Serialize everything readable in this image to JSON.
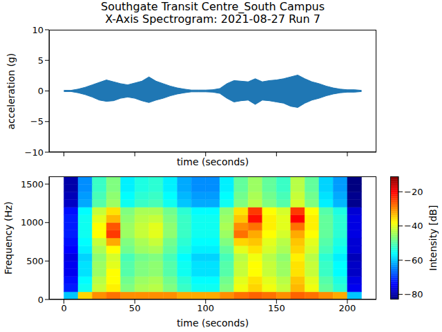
{
  "chart_data": [
    {
      "type": "area",
      "title": "Southgate Transit Centre_South Campus\nX-Axis Spectrogram: 2021-08-27 Run 7",
      "x_label": "time (seconds)",
      "y_label": "acceleration (g)",
      "x": [
        0,
        5,
        10,
        15,
        20,
        25,
        30,
        35,
        40,
        45,
        50,
        55,
        60,
        65,
        70,
        75,
        80,
        85,
        90,
        95,
        100,
        105,
        110,
        115,
        120,
        125,
        130,
        135,
        140,
        145,
        150,
        155,
        160,
        165,
        170,
        175,
        180,
        185,
        190,
        195,
        200,
        205,
        210
      ],
      "values": [
        [
          -0.1,
          0.1
        ],
        [
          -0.1,
          0.1
        ],
        [
          -0.3,
          0.3
        ],
        [
          -0.6,
          0.6
        ],
        [
          -1.0,
          1.0
        ],
        [
          -1.5,
          1.4
        ],
        [
          -1.7,
          1.8
        ],
        [
          -1.6,
          1.5
        ],
        [
          -1.2,
          1.2
        ],
        [
          -1.0,
          1.0
        ],
        [
          -1.2,
          1.3
        ],
        [
          -1.6,
          1.6
        ],
        [
          -1.9,
          2.3
        ],
        [
          -1.5,
          1.6
        ],
        [
          -1.2,
          1.2
        ],
        [
          -0.8,
          0.8
        ],
        [
          -0.5,
          0.5
        ],
        [
          -0.3,
          0.3
        ],
        [
          -0.15,
          0.15
        ],
        [
          -0.15,
          0.15
        ],
        [
          -0.15,
          0.15
        ],
        [
          -0.2,
          0.2
        ],
        [
          -0.4,
          0.4
        ],
        [
          -1.2,
          1.2
        ],
        [
          -1.8,
          1.7
        ],
        [
          -1.6,
          1.6
        ],
        [
          -1.5,
          1.5
        ],
        [
          -2.2,
          2.0
        ],
        [
          -1.5,
          1.5
        ],
        [
          -1.6,
          1.7
        ],
        [
          -1.8,
          1.8
        ],
        [
          -2.0,
          2.0
        ],
        [
          -2.5,
          2.3
        ],
        [
          -2.7,
          2.6
        ],
        [
          -2.0,
          2.0
        ],
        [
          -1.5,
          1.5
        ],
        [
          -1.2,
          1.2
        ],
        [
          -0.8,
          0.8
        ],
        [
          -0.5,
          0.5
        ],
        [
          -0.3,
          0.3
        ],
        [
          -0.2,
          0.2
        ],
        [
          -0.2,
          0.2
        ],
        [
          -0.1,
          0.1
        ]
      ],
      "color": "#1f77b4",
      "xlim": [
        -10.5,
        220.5
      ],
      "xticks": [
        0,
        50,
        100,
        150,
        200
      ],
      "ylim": [
        -10,
        10
      ],
      "yticks": [
        {
          "value": -10,
          "label": "−10"
        },
        {
          "value": -5,
          "label": "−5"
        },
        0,
        5,
        10
      ],
      "tick_labels": "y"
    },
    {
      "type": "heatmap",
      "x_label": "time (seconds)",
      "y_label": "Frequency (Hz)",
      "time_bins": [
        0,
        10,
        20,
        30,
        40,
        50,
        60,
        70,
        80,
        90,
        100,
        110,
        120,
        130,
        140,
        150,
        160,
        170,
        180,
        190,
        200,
        210
      ],
      "freq_bins": [
        0,
        100,
        200,
        300,
        400,
        500,
        600,
        700,
        800,
        900,
        1000,
        1100,
        1200,
        1300,
        1400,
        1500,
        1600
      ],
      "cells": [
        [
          -60,
          -35,
          -30,
          -28,
          -30,
          -30,
          -30,
          -30,
          -32,
          -32,
          -32,
          -30,
          -28,
          -27,
          -28,
          -30,
          -27,
          -28,
          -30,
          -32,
          -60
        ],
        [
          -72,
          -55,
          -42,
          -37,
          -47,
          -44,
          -43,
          -47,
          -52,
          -55,
          -55,
          -47,
          -39,
          -35,
          -39,
          -42,
          -33,
          -39,
          -49,
          -53,
          -75
        ],
        [
          -73,
          -56,
          -43,
          -38,
          -48,
          -45,
          -44,
          -48,
          -53,
          -56,
          -56,
          -48,
          -40,
          -36,
          -40,
          -43,
          -34,
          -40,
          -50,
          -54,
          -76
        ],
        [
          -75,
          -58,
          -45,
          -38,
          -50,
          -47,
          -46,
          -50,
          -55,
          -58,
          -58,
          -50,
          -42,
          -38,
          -42,
          -45,
          -36,
          -42,
          -52,
          -56,
          -78
        ],
        [
          -75,
          -58,
          -45,
          -40,
          -50,
          -47,
          -46,
          -50,
          -55,
          -58,
          -58,
          -50,
          -42,
          -38,
          -42,
          -45,
          -36,
          -42,
          -52,
          -56,
          -78
        ],
        [
          -76,
          -59,
          -46,
          -41,
          -51,
          -48,
          -47,
          -51,
          -56,
          -59,
          -59,
          -51,
          -43,
          -39,
          -43,
          -46,
          -37,
          -43,
          -53,
          -57,
          -79
        ],
        [
          -74,
          -57,
          -44,
          -38,
          -48,
          -45,
          -44,
          -49,
          -54,
          -57,
          -57,
          -49,
          -40,
          -36,
          -41,
          -44,
          -35,
          -41,
          -51,
          -55,
          -77
        ],
        [
          -73,
          -56,
          -42,
          -32,
          -47,
          -44,
          -42,
          -48,
          -53,
          -56,
          -56,
          -47,
          -35,
          -34,
          -40,
          -43,
          -34,
          -40,
          -50,
          -54,
          -77
        ],
        [
          -72,
          -55,
          -38,
          -24,
          -45,
          -42,
          -40,
          -46,
          -52,
          -55,
          -55,
          -45,
          -28,
          -32,
          -38,
          -41,
          -32,
          -38,
          -49,
          -53,
          -76
        ],
        [
          -72,
          -55,
          -38,
          -26,
          -45,
          -42,
          -40,
          -46,
          -52,
          -55,
          -55,
          -44,
          -30,
          -28,
          -37,
          -40,
          -28,
          -37,
          -49,
          -53,
          -76
        ],
        [
          -72,
          -55,
          -40,
          -33,
          -46,
          -43,
          -42,
          -47,
          -52,
          -55,
          -55,
          -45,
          -34,
          -21,
          -37,
          -40,
          -20,
          -37,
          -49,
          -53,
          -76
        ],
        [
          -73,
          -56,
          -42,
          -36,
          -47,
          -44,
          -44,
          -48,
          -53,
          -56,
          -56,
          -46,
          -36,
          -24,
          -38,
          -41,
          -24,
          -38,
          -50,
          -54,
          -77
        ],
        [
          -78,
          -62,
          -50,
          -45,
          -55,
          -52,
          -51,
          -55,
          -60,
          -62,
          -62,
          -55,
          -47,
          -43,
          -47,
          -50,
          -41,
          -47,
          -57,
          -61,
          -82
        ],
        [
          -79,
          -63,
          -51,
          -46,
          -56,
          -53,
          -52,
          -56,
          -61,
          -63,
          -63,
          -56,
          -48,
          -44,
          -48,
          -51,
          -42,
          -48,
          -58,
          -62,
          -82
        ],
        [
          -80,
          -64,
          -52,
          -47,
          -57,
          -54,
          -53,
          -57,
          -62,
          -64,
          -64,
          -57,
          -49,
          -45,
          -49,
          -52,
          -43,
          -49,
          -59,
          -63,
          -83
        ],
        [
          -80,
          -64,
          -52,
          -47,
          -57,
          -54,
          -53,
          -57,
          -62,
          -64,
          -64,
          -57,
          -49,
          -45,
          -49,
          -52,
          -43,
          -49,
          -59,
          -63,
          -83
        ]
      ],
      "colorbar_range": [
        -83,
        -11
      ],
      "colorbar_ticks": [
        {
          "value": -80,
          "label": "−80"
        },
        {
          "value": -60,
          "label": "−60"
        },
        {
          "value": -40,
          "label": "−40"
        },
        {
          "value": -20,
          "label": "−20"
        }
      ],
      "colorbar_label": "Intensity [dB]",
      "xlim": [
        -10.5,
        220.5
      ],
      "xticks": [
        0,
        50,
        100,
        150,
        200
      ],
      "ylim": [
        0,
        1600
      ],
      "yticks": [
        0,
        500,
        1000,
        1500
      ]
    }
  ]
}
